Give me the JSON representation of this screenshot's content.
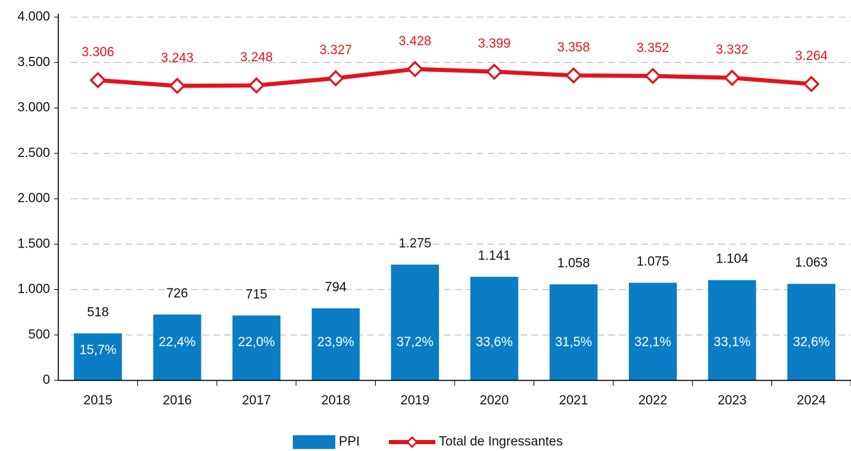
{
  "chart_data": {
    "type": "bar_line",
    "categories": [
      "2015",
      "2016",
      "2017",
      "2018",
      "2019",
      "2020",
      "2021",
      "2022",
      "2023",
      "2024"
    ],
    "series": [
      {
        "name": "PPI",
        "type": "bar",
        "color": "#0b7dc5",
        "values": [
          518,
          726,
          715,
          794,
          1275,
          1141,
          1058,
          1075,
          1104,
          1063
        ],
        "value_labels": [
          "518",
          "726",
          "715",
          "794",
          "1.275",
          "1.141",
          "1.058",
          "1.075",
          "1.104",
          "1.063"
        ],
        "share_labels": [
          "15,7%",
          "22,4%",
          "22,0%",
          "23,9%",
          "37,2%",
          "33,6%",
          "31,5%",
          "32,1%",
          "33,1%",
          "32,6%"
        ]
      },
      {
        "name": "Total de Ingressantes",
        "type": "line",
        "color": "#e0141e",
        "values": [
          3306,
          3243,
          3248,
          3327,
          3428,
          3399,
          3358,
          3352,
          3332,
          3264
        ],
        "value_labels": [
          "3.306",
          "3.243",
          "3.248",
          "3.327",
          "3.428",
          "3.399",
          "3.358",
          "3.352",
          "3.332",
          "3.264"
        ]
      }
    ],
    "ylim": [
      0,
      4000
    ],
    "yticks": [
      0,
      500,
      {
        "value": 1000,
        "label": "1.000"
      },
      {
        "value": 1500,
        "label": "1.500"
      },
      {
        "value": 2000,
        "label": "2.000"
      },
      {
        "value": 2500,
        "label": "2.500"
      },
      {
        "value": 3000,
        "label": "3.000"
      },
      {
        "value": 3500,
        "label": "3.500"
      },
      {
        "value": 4000,
        "label": "4.000"
      }
    ],
    "grid": true
  }
}
